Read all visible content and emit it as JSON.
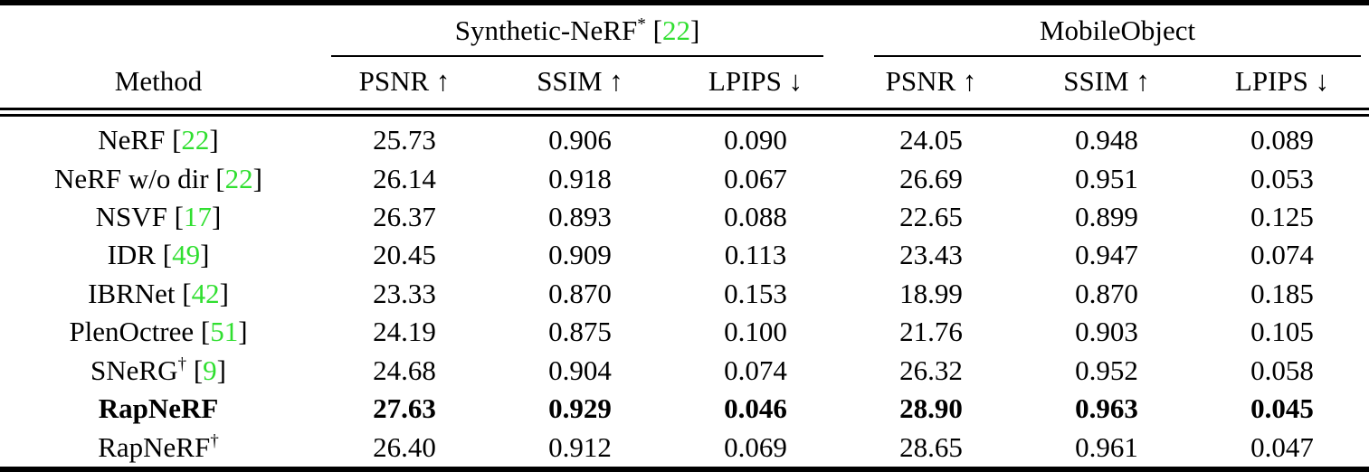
{
  "colors": {
    "citation_green": "#30DF30",
    "text": "#000000",
    "rule": "#000000",
    "background": "#FFFFFF"
  },
  "table": {
    "method_header": "Method",
    "metric_headers": [
      "PSNR ↑",
      "SSIM ↑",
      "LPIPS ↓"
    ],
    "punct": {
      "open": "[",
      "close": "]"
    },
    "groups": [
      {
        "name": "Synthetic-NeRF",
        "sup": "*",
        "cite_open": " [",
        "cite": "22",
        "cite_close": "]"
      },
      {
        "name": "MobileObject",
        "sup": "",
        "cite_open": "",
        "cite": "",
        "cite_close": ""
      }
    ],
    "rows": [
      {
        "method": "NeRF",
        "sup": "",
        "cite": "22",
        "bold": false,
        "values": [
          "25.73",
          "0.906",
          "0.090",
          "24.05",
          "0.948",
          "0.089"
        ]
      },
      {
        "method": "NeRF w/o dir",
        "sup": "",
        "cite": "22",
        "bold": false,
        "values": [
          "26.14",
          "0.918",
          "0.067",
          "26.69",
          "0.951",
          "0.053"
        ]
      },
      {
        "method": "NSVF",
        "sup": "",
        "cite": "17",
        "bold": false,
        "values": [
          "26.37",
          "0.893",
          "0.088",
          "22.65",
          "0.899",
          "0.125"
        ]
      },
      {
        "method": "IDR",
        "sup": "",
        "cite": "49",
        "bold": false,
        "values": [
          "20.45",
          "0.909",
          "0.113",
          "23.43",
          "0.947",
          "0.074"
        ]
      },
      {
        "method": "IBRNet",
        "sup": "",
        "cite": "42",
        "bold": false,
        "values": [
          "23.33",
          "0.870",
          "0.153",
          "18.99",
          "0.870",
          "0.185"
        ]
      },
      {
        "method": "PlenOctree",
        "sup": "",
        "cite": "51",
        "bold": false,
        "values": [
          "24.19",
          "0.875",
          "0.100",
          "21.76",
          "0.903",
          "0.105"
        ]
      },
      {
        "method": "SNeRG",
        "sup": "†",
        "cite": "9",
        "bold": false,
        "values": [
          "24.68",
          "0.904",
          "0.074",
          "26.32",
          "0.952",
          "0.058"
        ]
      },
      {
        "method": "RapNeRF",
        "sup": "",
        "cite": "",
        "bold": true,
        "values": [
          "27.63",
          "0.929",
          "0.046",
          "28.90",
          "0.963",
          "0.045"
        ]
      },
      {
        "method": "RapNeRF",
        "sup": "†",
        "cite": "",
        "bold": false,
        "values": [
          "26.40",
          "0.912",
          "0.069",
          "28.65",
          "0.961",
          "0.047"
        ]
      }
    ]
  }
}
